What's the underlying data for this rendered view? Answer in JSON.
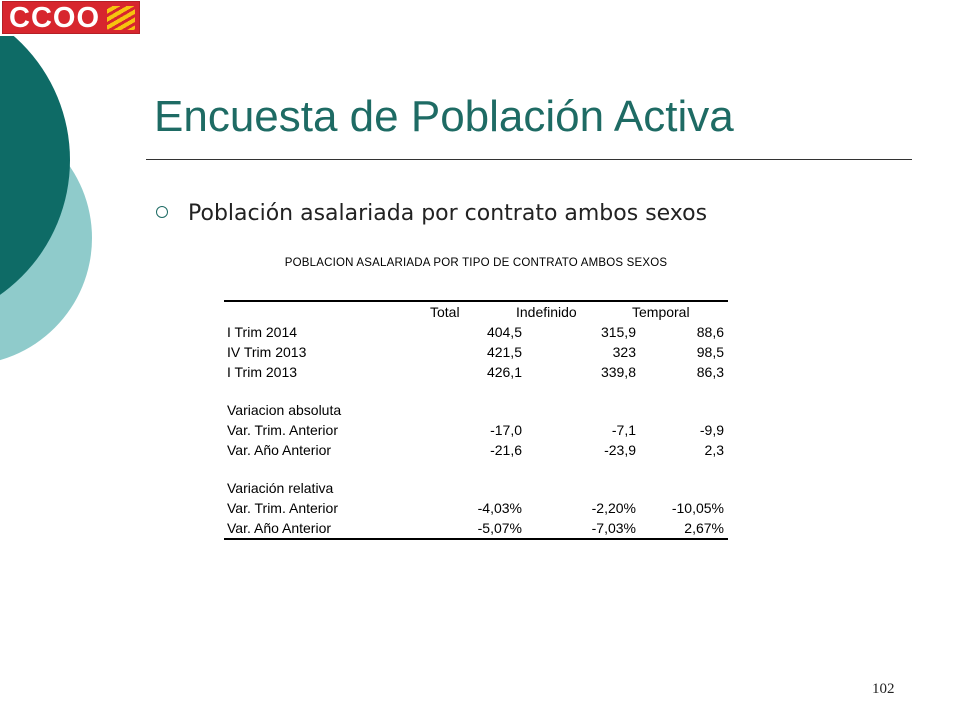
{
  "logo": {
    "text": "CCOO"
  },
  "slide": {
    "title": "Encuesta de Población Activa",
    "bullet": "Población asalariada por contrato ambos sexos",
    "page_number": "102"
  },
  "table": {
    "title": "POBLACION ASALARIADA POR TIPO DE CONTRATO AMBOS SEXOS",
    "columns": [
      "Total",
      "Indefinido",
      "Temporal"
    ],
    "rows": [
      {
        "label": "I Trim 2014",
        "values": [
          "404,5",
          "315,9",
          "88,6"
        ]
      },
      {
        "label": "IV Trim 2013",
        "values": [
          "421,5",
          "323",
          "98,5"
        ]
      },
      {
        "label": "I Trim 2013",
        "values": [
          "426,1",
          "339,8",
          "86,3"
        ]
      }
    ],
    "sections": [
      {
        "title": "Variacion absoluta",
        "rows": [
          {
            "label": "Var. Trim. Anterior",
            "values": [
              "-17,0",
              "-7,1",
              "-9,9"
            ]
          },
          {
            "label": "Var. Año Anterior",
            "values": [
              "-21,6",
              "-23,9",
              "2,3"
            ]
          }
        ]
      },
      {
        "title": "Variación relativa",
        "rows": [
          {
            "label": "Var. Trim. Anterior",
            "values": [
              "-4,03%",
              "-2,20%",
              "-10,05%"
            ]
          },
          {
            "label": "Var. Año Anterior",
            "values": [
              "-5,07%",
              "-7,03%",
              "2,67%"
            ]
          }
        ]
      }
    ]
  },
  "colors": {
    "accent": "#1e6b64",
    "dark_teal": "#0e6b66",
    "light_teal": "#8fcbcb",
    "logo_red": "#d7262e"
  }
}
